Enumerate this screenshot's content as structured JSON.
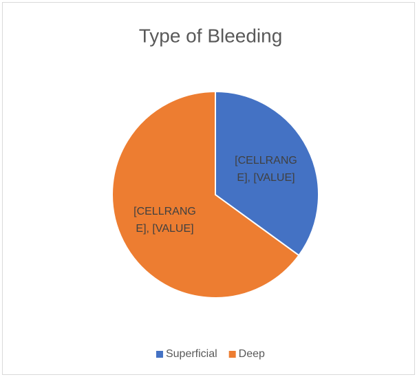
{
  "chart_data": {
    "type": "pie",
    "title": "Type of Bleeding",
    "categories": [
      "Superficial",
      "Deep"
    ],
    "values": [
      35,
      65
    ],
    "colors": [
      "#4472c4",
      "#ed7d31"
    ],
    "labels": [
      "[CELLRANGE], [VALUE]",
      "[CELLRANGE], [VALUE]"
    ],
    "legend": "bottom"
  }
}
